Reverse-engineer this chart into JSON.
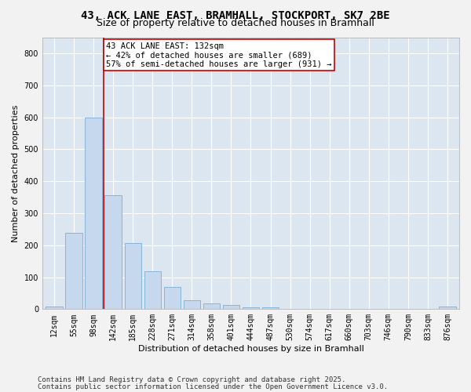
{
  "title_line1": "43, ACK LANE EAST, BRAMHALL, STOCKPORT, SK7 2BE",
  "title_line2": "Size of property relative to detached houses in Bramhall",
  "xlabel": "Distribution of detached houses by size in Bramhall",
  "ylabel": "Number of detached properties",
  "categories": [
    "12sqm",
    "55sqm",
    "98sqm",
    "142sqm",
    "185sqm",
    "228sqm",
    "271sqm",
    "314sqm",
    "358sqm",
    "401sqm",
    "444sqm",
    "487sqm",
    "530sqm",
    "574sqm",
    "617sqm",
    "660sqm",
    "703sqm",
    "746sqm",
    "790sqm",
    "833sqm",
    "876sqm"
  ],
  "values": [
    8,
    238,
    598,
    355,
    207,
    118,
    70,
    28,
    17,
    13,
    5,
    5,
    0,
    0,
    0,
    0,
    0,
    0,
    0,
    0,
    8
  ],
  "bar_color": "#c5d8ed",
  "bar_edge_color": "#7aadd4",
  "background_color": "#dce6f1",
  "grid_color": "#ffffff",
  "vline_x_index": 2.5,
  "annotation_text": "43 ACK LANE EAST: 132sqm\n← 42% of detached houses are smaller (689)\n57% of semi-detached houses are larger (931) →",
  "annotation_box_facecolor": "#ffffff",
  "annotation_box_edgecolor": "#cc0000",
  "vline_color": "#cc0000",
  "ylim": [
    0,
    850
  ],
  "yticks": [
    0,
    100,
    200,
    300,
    400,
    500,
    600,
    700,
    800
  ],
  "figure_facecolor": "#f2f2f2",
  "footer_line1": "Contains HM Land Registry data © Crown copyright and database right 2025.",
  "footer_line2": "Contains public sector information licensed under the Open Government Licence v3.0.",
  "title_fontsize": 10,
  "subtitle_fontsize": 9,
  "axis_label_fontsize": 8,
  "tick_fontsize": 7,
  "annotation_fontsize": 7.5,
  "footer_fontsize": 6.5,
  "ylabel_fontsize": 8
}
